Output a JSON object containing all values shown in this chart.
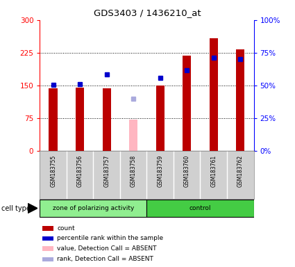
{
  "title": "GDS3403 / 1436210_at",
  "samples": [
    "GSM183755",
    "GSM183756",
    "GSM183757",
    "GSM183758",
    "GSM183759",
    "GSM183760",
    "GSM183761",
    "GSM183762"
  ],
  "count_values": [
    143,
    145,
    144,
    null,
    150,
    218,
    258,
    232
  ],
  "count_absent": [
    null,
    null,
    null,
    72,
    null,
    null,
    null,
    null
  ],
  "percentile_values": [
    152,
    153,
    175,
    null,
    168,
    185,
    213,
    210
  ],
  "percentile_absent": [
    null,
    null,
    null,
    120,
    null,
    null,
    null,
    null
  ],
  "detection_present": [
    true,
    true,
    true,
    false,
    true,
    true,
    true,
    true
  ],
  "ylim_left": [
    0,
    300
  ],
  "yticks_left": [
    0,
    75,
    150,
    225,
    300
  ],
  "ytick_labels_left": [
    "0",
    "75",
    "150",
    "225",
    "300"
  ],
  "ytick_labels_right": [
    "0%",
    "25%",
    "50%",
    "75%",
    "100%"
  ],
  "bar_width": 0.32,
  "count_color": "#bb0000",
  "count_absent_color": "#ffb6c1",
  "percentile_color": "#0000cc",
  "percentile_absent_color": "#aaaadd",
  "group1_color": "#90ee90",
  "group2_color": "#44cc44",
  "group_boundary": 4,
  "cell_type_label": "cell type",
  "legend_labels": [
    "count",
    "percentile rank within the sample",
    "value, Detection Call = ABSENT",
    "rank, Detection Call = ABSENT"
  ]
}
